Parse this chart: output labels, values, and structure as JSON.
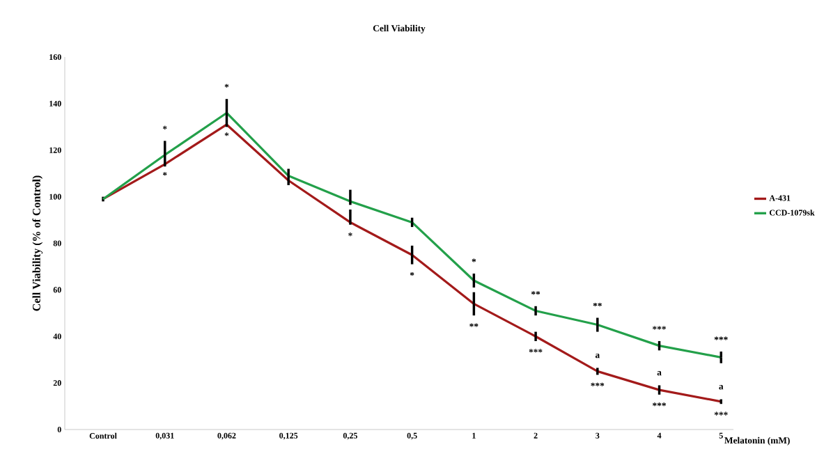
{
  "chart_data": {
    "type": "line",
    "title": "Cell Viability",
    "ylabel": "Cell Viability  (% of Control)",
    "xlabel": "Melatonin (mM)",
    "categories": [
      "Control",
      "0,031",
      "0,062",
      "0,125",
      "0,25",
      "0,5",
      "1",
      "2",
      "3",
      "4",
      "5"
    ],
    "series": [
      {
        "name": "A-431",
        "color": "#a31a1a",
        "values": [
          99,
          114,
          131,
          107,
          89,
          75,
          54,
          40,
          25,
          17,
          12
        ],
        "errors": [
          1,
          null,
          null,
          null,
          [
            88,
            94.5
          ],
          4,
          5,
          2,
          1.5,
          2,
          1
        ]
      },
      {
        "name": "CCD-1079sk",
        "color": "#23a04a",
        "values": [
          99,
          118,
          136,
          109,
          98,
          89,
          64,
          51,
          45,
          36,
          31
        ],
        "errors": [
          null,
          [
            113,
            124
          ],
          [
            130,
            142
          ],
          [
            105,
            112
          ],
          [
            96.5,
            103
          ],
          2,
          3,
          2,
          3,
          2,
          2.5
        ]
      }
    ],
    "ylim": [
      0,
      160
    ],
    "yticks": [
      0,
      20,
      40,
      60,
      80,
      100,
      120,
      140,
      160
    ],
    "grid": false,
    "legend": "right",
    "marker": "none",
    "line_style": "solid",
    "annotations": [
      {
        "text": "*",
        "x": "0,031",
        "y": 118
      },
      {
        "text": "*",
        "x": "0,031",
        "y": 114
      },
      {
        "text": "*",
        "x": "0,062",
        "y": 136
      },
      {
        "text": "*",
        "x": "0,062",
        "y": 131
      },
      {
        "text": "*",
        "x": "0,25",
        "y": 89
      },
      {
        "text": "*",
        "x": "0,5",
        "y": 75
      },
      {
        "text": "*",
        "x": "1",
        "y": 64
      },
      {
        "text": "**",
        "x": "1",
        "y": 54
      },
      {
        "text": "**",
        "x": "2",
        "y": 51
      },
      {
        "text": "***",
        "x": "2",
        "y": 40
      },
      {
        "text": "**",
        "x": "3",
        "y": 45
      },
      {
        "text": "***",
        "x": "3",
        "y": 25
      },
      {
        "text": "a",
        "x": "3",
        "y": 25
      },
      {
        "text": "***",
        "x": "4",
        "y": 36
      },
      {
        "text": "***",
        "x": "4",
        "y": 17
      },
      {
        "text": "a",
        "x": "4",
        "y": 17
      },
      {
        "text": "***",
        "x": "5",
        "y": 31
      },
      {
        "text": "***",
        "x": "5",
        "y": 12
      },
      {
        "text": "a",
        "x": "5",
        "y": 12
      }
    ]
  }
}
